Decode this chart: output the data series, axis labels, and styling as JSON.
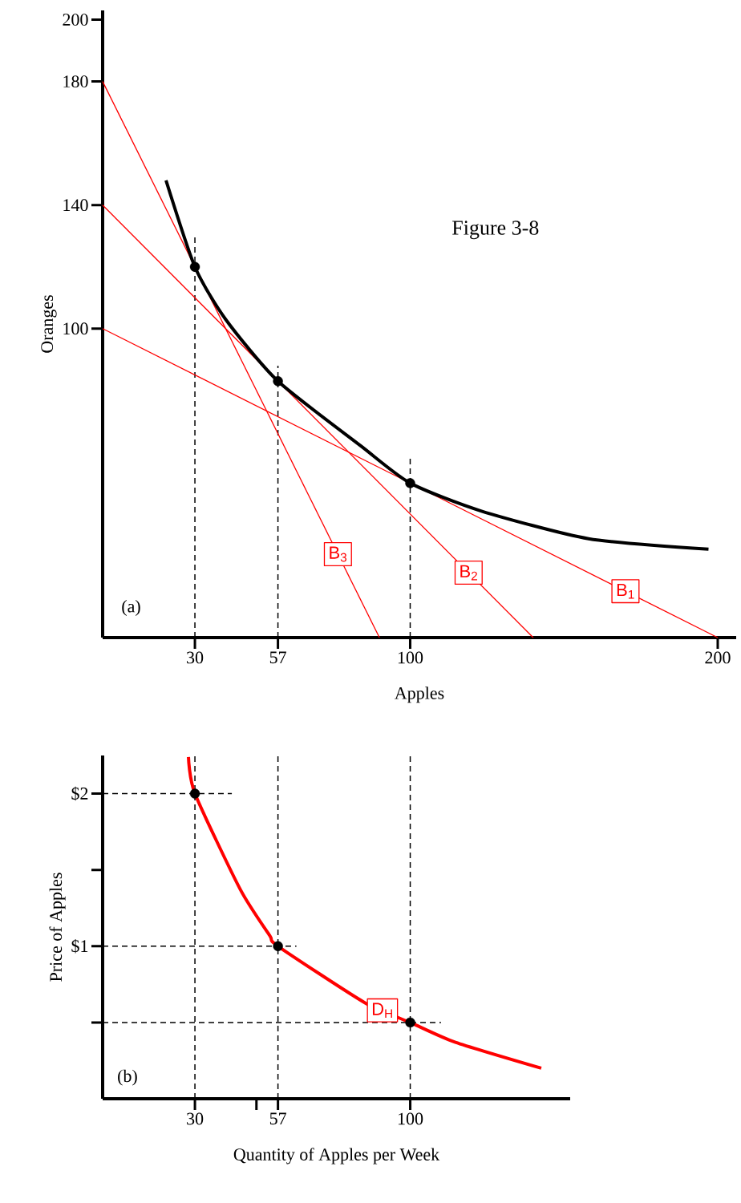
{
  "chart_data": [
    {
      "type": "line",
      "title": "Figure 3-8",
      "xlabel": "Apples",
      "ylabel": "Oranges",
      "annotations": [
        "(a)"
      ],
      "xlim": [
        0,
        206
      ],
      "ylim": [
        0,
        203
      ],
      "xticks": [
        30,
        57,
        100,
        200
      ],
      "yticks": [
        100,
        140,
        180,
        200
      ],
      "series": [
        {
          "color": "#000000",
          "line_style": "dashed",
          "x": [
            30,
            30
          ],
          "values": [
            0,
            130
          ]
        },
        {
          "color": "#000000",
          "line_style": "dashed",
          "x": [
            57,
            57
          ],
          "values": [
            0,
            88
          ]
        },
        {
          "color": "#000000",
          "line_style": "dashed",
          "x": [
            100,
            100
          ],
          "values": [
            0,
            58
          ]
        },
        {
          "name": "B$_{1}$",
          "color": "#ff0000",
          "x": [
            0,
            200
          ],
          "values": [
            100,
            0
          ]
        },
        {
          "name": "B$_{2}$",
          "color": "#ff0000",
          "x": [
            0,
            140
          ],
          "values": [
            140,
            0
          ]
        },
        {
          "name": "B$_{3}$",
          "color": "#ff0000",
          "x": [
            0,
            90
          ],
          "values": [
            180,
            0
          ]
        },
        {
          "color": "#000000",
          "x": [
            20.6,
            30,
            40,
            57,
            84,
            100,
            123,
            158,
            197
          ],
          "values": [
            148,
            120,
            103,
            83,
            62,
            50,
            41,
            32,
            28.6
          ]
        },
        {
          "type": "scatter",
          "color": "#000000",
          "marker": "circle",
          "x": [
            30,
            57,
            100
          ],
          "values": [
            120,
            83,
            50
          ]
        }
      ]
    },
    {
      "type": "line",
      "xlabel": "Quantity of Apples per Week",
      "ylabel": "Price of Apples",
      "annotations": [
        "(b)"
      ],
      "xlim": [
        0,
        152
      ],
      "ylim": [
        0,
        2.25
      ],
      "xticks": [
        30,
        {
          "value": 50,
          "label": null
        },
        57,
        100
      ],
      "yticks": [
        {
          "value": 0.5,
          "label": null
        },
        {
          "value": 1,
          "label": "$1"
        },
        {
          "value": 1.5,
          "label": null
        },
        {
          "value": 2,
          "label": "$2"
        }
      ],
      "series": [
        {
          "color": "#000000",
          "line_style": "dashed",
          "x": [
            30,
            30
          ],
          "values": [
            0,
            2.25
          ]
        },
        {
          "color": "#000000",
          "line_style": "dashed",
          "x": [
            57,
            57
          ],
          "values": [
            0,
            2.25
          ]
        },
        {
          "color": "#000000",
          "line_style": "dashed",
          "x": [
            100,
            100
          ],
          "values": [
            0,
            2.25
          ]
        },
        {
          "color": "#000000",
          "line_style": "dashed",
          "x": [
            0,
            42
          ],
          "values": [
            2,
            2
          ]
        },
        {
          "color": "#000000",
          "line_style": "dashed",
          "x": [
            0,
            63
          ],
          "values": [
            1,
            1
          ]
        },
        {
          "color": "#000000",
          "line_style": "dashed",
          "x": [
            0,
            110
          ],
          "values": [
            0.5,
            0.5
          ]
        },
        {
          "name": "D$_{H}$",
          "color": "#ff0000",
          "x": [
            27.9,
            30,
            44.8,
            54.3,
            57,
            85.2,
            100,
            114.7,
            142.6
          ],
          "values": [
            2.24,
            2,
            1.37,
            1.07,
            1,
            0.63,
            0.5,
            0.37,
            0.2
          ]
        },
        {
          "type": "scatter",
          "color": "#000000",
          "marker": "circle",
          "x": [
            30,
            57,
            100
          ],
          "values": [
            2,
            1,
            0.5
          ]
        }
      ]
    }
  ]
}
